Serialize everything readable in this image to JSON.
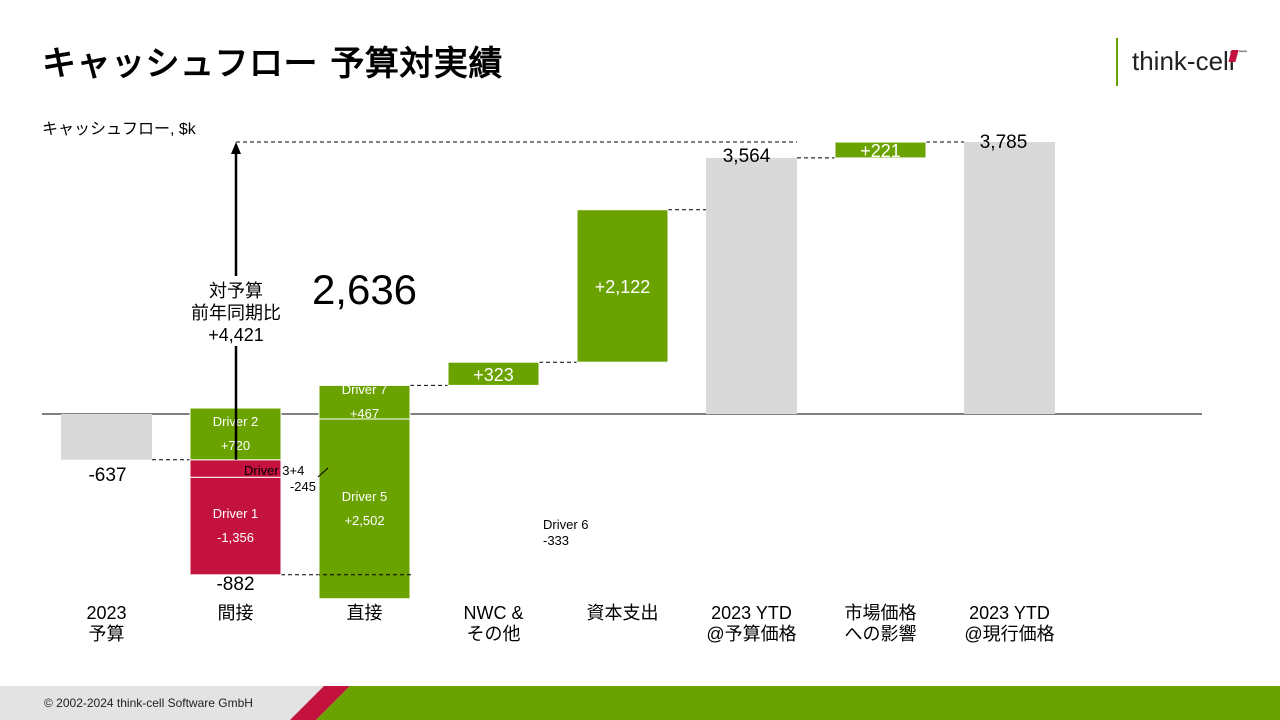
{
  "header": {
    "title": "キャッシュフロー 予算対実績",
    "logo_text": "think-cell"
  },
  "footer": {
    "copyright": "© 2002-2024 think-cell Software GmbH"
  },
  "colors": {
    "green": "#6aa300",
    "red": "#c4123f",
    "grey": "#d9d9d9"
  },
  "chart_data": {
    "type": "waterfall",
    "ylabel": "キャッシュフロー, $k",
    "ylim": [
      -1000,
      3900
    ],
    "columns": [
      {
        "label": [
          "2023",
          "予算"
        ],
        "bars": [
          {
            "kind": "total",
            "from": 0,
            "to": -637,
            "value": "-637"
          }
        ],
        "bottom_label": "-637"
      },
      {
        "label": [
          "間接"
        ],
        "bars": [
          {
            "kind": "neg",
            "from": -637,
            "to": -882,
            "name": "Driver 3+4",
            "value": "-245",
            "outside": true
          },
          {
            "kind": "neg",
            "from": -882,
            "to": -2238,
            "name": "Driver 1",
            "value": "-1,356"
          },
          {
            "kind": "pos",
            "from": -637,
            "to": 83,
            "name": "Driver 2",
            "value": "+720"
          }
        ],
        "bottom_label": "-882"
      },
      {
        "label": [
          "直接"
        ],
        "bars": [
          {
            "kind": "neg",
            "from": -2238,
            "to": -2571,
            "name": "Driver 6",
            "value": "-333",
            "outside": true
          },
          {
            "kind": "pos",
            "from": -2571,
            "to": -69,
            "name": "Driver 5",
            "value": "+2,502"
          },
          {
            "kind": "pos",
            "from": -69,
            "to": 398,
            "name": "Driver 7",
            "value": "+467"
          }
        ],
        "top_label": "2,636"
      },
      {
        "label": [
          "NWC &",
          "その他"
        ],
        "bars": [
          {
            "kind": "pos",
            "from": 398,
            "to": 721,
            "value": "+323"
          }
        ]
      },
      {
        "label": [
          "資本支出"
        ],
        "bars": [
          {
            "kind": "pos",
            "from": 721,
            "to": 2843,
            "value": "+2,122"
          }
        ]
      },
      {
        "label": [
          "2023 YTD",
          "@予算価格"
        ],
        "bars": [
          {
            "kind": "total",
            "from": 0,
            "to": 3564
          }
        ],
        "top_label": "3,564"
      },
      {
        "label": [
          "市場価格",
          "への影響"
        ],
        "bars": [
          {
            "kind": "pos",
            "from": 3564,
            "to": 3785,
            "value": "+221"
          }
        ]
      },
      {
        "label": [
          "2023 YTD",
          "@現行価格"
        ],
        "bars": [
          {
            "kind": "total",
            "from": 0,
            "to": 3785
          }
        ],
        "top_label": "3,785"
      }
    ],
    "difference_arrow": {
      "text": [
        "対予算",
        "前年同期比",
        "+4,421"
      ],
      "from": -637,
      "to": 3785
    }
  }
}
